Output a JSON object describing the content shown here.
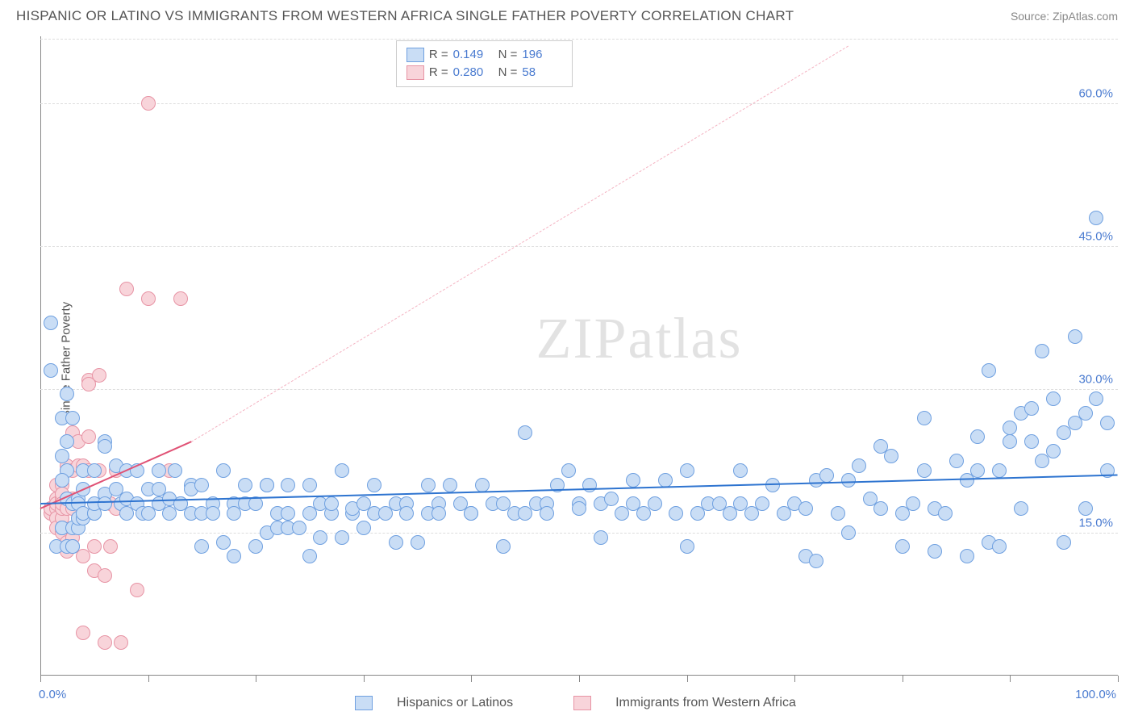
{
  "title": "HISPANIC OR LATINO VS IMMIGRANTS FROM WESTERN AFRICA SINGLE FATHER POVERTY CORRELATION CHART",
  "source": "Source: ZipAtlas.com",
  "ylabel": "Single Father Poverty",
  "watermark_a": "ZIP",
  "watermark_b": "atlas",
  "chart": {
    "type": "scatter",
    "background_color": "#ffffff",
    "grid_color": "#dddddd",
    "axis_color": "#888888",
    "label_color": "#4a7bd0",
    "xlim": [
      0,
      100
    ],
    "ylim": [
      0,
      67
    ],
    "ytick_values": [
      15,
      30,
      45,
      60
    ],
    "ytick_labels": [
      "15.0%",
      "30.0%",
      "45.0%",
      "60.0%"
    ],
    "xtick_values": [
      0,
      10,
      20,
      30,
      40,
      50,
      60,
      70,
      80,
      90,
      100
    ],
    "xaxis_labels": {
      "left": "0.0%",
      "right": "100.0%"
    },
    "marker_radius": 9,
    "marker_stroke": 1.2,
    "series_blue": {
      "name": "Hispanics or Latinos",
      "fill": "#c9ddf5",
      "stroke": "#6fa0e0",
      "trend_color": "#2e74d0",
      "trend_dash_color": "#9fc1ea",
      "R": "0.149",
      "N": "196",
      "trend": {
        "x1": 0,
        "y1": 18.0,
        "x2": 100,
        "y2": 21.0,
        "dash_from_x": 100
      },
      "points": [
        [
          1,
          37
        ],
        [
          1,
          32
        ],
        [
          2,
          27
        ],
        [
          2.5,
          29.5
        ],
        [
          2,
          23
        ],
        [
          3,
          27
        ],
        [
          2.5,
          21.5
        ],
        [
          2.5,
          24.5
        ],
        [
          2,
          20.5
        ],
        [
          2.5,
          18.5
        ],
        [
          3,
          18
        ],
        [
          3.5,
          18.5
        ],
        [
          2,
          15.5
        ],
        [
          2,
          15.5
        ],
        [
          3,
          15.5
        ],
        [
          3.5,
          15.5
        ],
        [
          1.5,
          13.5
        ],
        [
          2.5,
          13.5
        ],
        [
          3,
          13.5
        ],
        [
          3,
          13.5
        ],
        [
          3.5,
          16.5
        ],
        [
          3.5,
          18
        ],
        [
          4,
          16.5
        ],
        [
          4,
          17
        ],
        [
          4,
          19.5
        ],
        [
          4,
          21.5
        ],
        [
          5,
          17
        ],
        [
          5,
          17
        ],
        [
          5,
          18
        ],
        [
          5,
          21.5
        ],
        [
          6,
          24.5
        ],
        [
          6,
          19
        ],
        [
          6,
          18
        ],
        [
          6,
          24
        ],
        [
          7,
          19.5
        ],
        [
          7,
          22
        ],
        [
          7.5,
          18
        ],
        [
          8,
          21.5
        ],
        [
          8,
          18.5
        ],
        [
          8,
          17
        ],
        [
          9,
          18
        ],
        [
          9,
          21.5
        ],
        [
          9.5,
          17
        ],
        [
          10,
          19.5
        ],
        [
          10,
          17
        ],
        [
          11,
          18
        ],
        [
          11,
          19.5
        ],
        [
          11,
          21.5
        ],
        [
          12,
          17
        ],
        [
          12,
          18.5
        ],
        [
          12.5,
          21.5
        ],
        [
          13,
          18
        ],
        [
          13,
          18
        ],
        [
          14,
          20
        ],
        [
          14,
          17
        ],
        [
          14,
          19.5
        ],
        [
          15,
          17
        ],
        [
          15,
          13.5
        ],
        [
          15,
          20
        ],
        [
          16,
          18
        ],
        [
          16,
          17
        ],
        [
          17,
          14
        ],
        [
          17,
          21.5
        ],
        [
          18,
          18
        ],
        [
          18,
          17
        ],
        [
          18,
          12.5
        ],
        [
          19,
          20
        ],
        [
          19,
          18
        ],
        [
          20,
          18
        ],
        [
          20,
          13.5
        ],
        [
          21,
          20
        ],
        [
          21,
          15
        ],
        [
          21,
          20
        ],
        [
          22,
          15.5
        ],
        [
          22,
          17
        ],
        [
          23,
          20
        ],
        [
          23,
          15.5
        ],
        [
          23,
          17
        ],
        [
          24,
          15.5
        ],
        [
          25,
          17
        ],
        [
          25,
          20
        ],
        [
          25,
          12.5
        ],
        [
          26,
          18
        ],
        [
          26,
          14.5
        ],
        [
          27,
          17
        ],
        [
          27,
          18
        ],
        [
          28,
          14.5
        ],
        [
          28,
          21.5
        ],
        [
          29,
          17
        ],
        [
          29,
          17.5
        ],
        [
          30,
          15.5
        ],
        [
          30,
          18
        ],
        [
          31,
          17
        ],
        [
          31,
          20
        ],
        [
          32,
          17
        ],
        [
          33,
          18
        ],
        [
          33,
          14
        ],
        [
          34,
          18
        ],
        [
          34,
          17
        ],
        [
          35,
          14
        ],
        [
          36,
          17
        ],
        [
          36,
          20
        ],
        [
          37,
          18
        ],
        [
          37,
          17
        ],
        [
          38,
          20
        ],
        [
          39,
          18
        ],
        [
          40,
          17
        ],
        [
          40,
          17
        ],
        [
          41,
          20
        ],
        [
          42,
          18
        ],
        [
          43,
          13.5
        ],
        [
          43,
          18
        ],
        [
          44,
          17
        ],
        [
          45,
          25.5
        ],
        [
          45,
          17
        ],
        [
          46,
          18
        ],
        [
          47,
          18
        ],
        [
          47,
          17
        ],
        [
          48,
          20
        ],
        [
          49,
          21.5
        ],
        [
          50,
          18
        ],
        [
          50,
          17.5
        ],
        [
          51,
          20
        ],
        [
          52,
          14.5
        ],
        [
          52,
          18
        ],
        [
          53,
          18.5
        ],
        [
          54,
          17
        ],
        [
          55,
          18
        ],
        [
          55,
          20.5
        ],
        [
          56,
          17
        ],
        [
          57,
          18
        ],
        [
          58,
          20.5
        ],
        [
          59,
          17
        ],
        [
          60,
          21.5
        ],
        [
          60,
          13.5
        ],
        [
          61,
          17
        ],
        [
          62,
          18
        ],
        [
          63,
          18
        ],
        [
          64,
          17
        ],
        [
          65,
          21.5
        ],
        [
          65,
          18
        ],
        [
          66,
          17
        ],
        [
          67,
          18
        ],
        [
          68,
          20
        ],
        [
          69,
          17
        ],
        [
          70,
          18
        ],
        [
          71,
          17.5
        ],
        [
          71,
          12.5
        ],
        [
          72,
          12
        ],
        [
          72,
          20.5
        ],
        [
          73,
          21
        ],
        [
          74,
          17
        ],
        [
          75,
          15
        ],
        [
          75,
          20.5
        ],
        [
          76,
          22
        ],
        [
          77,
          18.5
        ],
        [
          78,
          24
        ],
        [
          78,
          17.5
        ],
        [
          79,
          23
        ],
        [
          80,
          17
        ],
        [
          80,
          13.5
        ],
        [
          81,
          18
        ],
        [
          82,
          21.5
        ],
        [
          82,
          27
        ],
        [
          83,
          13
        ],
        [
          83,
          17.5
        ],
        [
          84,
          17
        ],
        [
          85,
          22.5
        ],
        [
          86,
          20.5
        ],
        [
          86,
          12.5
        ],
        [
          87,
          25
        ],
        [
          87,
          21.5
        ],
        [
          88,
          14
        ],
        [
          88,
          32
        ],
        [
          89,
          13.5
        ],
        [
          89,
          21.5
        ],
        [
          90,
          26
        ],
        [
          90,
          24.5
        ],
        [
          91,
          17.5
        ],
        [
          91,
          27.5
        ],
        [
          92,
          28
        ],
        [
          92,
          24.5
        ],
        [
          93,
          34
        ],
        [
          93,
          22.5
        ],
        [
          94,
          29
        ],
        [
          94,
          23.5
        ],
        [
          95,
          14
        ],
        [
          95,
          25.5
        ],
        [
          96,
          26.5
        ],
        [
          96,
          35.5
        ],
        [
          97,
          17.5
        ],
        [
          97,
          27.5
        ],
        [
          98,
          48
        ],
        [
          98,
          29
        ],
        [
          99,
          26.5
        ],
        [
          99,
          21.5
        ]
      ]
    },
    "series_pink": {
      "name": "Immigrants from Western Africa",
      "fill": "#f8d4da",
      "stroke": "#e794a5",
      "trend_color": "#e05275",
      "trend_dash_color": "#f4b3c2",
      "R": "0.280",
      "N": "58",
      "trend": {
        "x1": 0,
        "y1": 17.5,
        "x2": 14,
        "y2": 24.5,
        "dash_to_x": 75,
        "dash_to_y": 66
      },
      "points": [
        [
          1,
          17.5
        ],
        [
          1,
          17.5
        ],
        [
          1,
          17
        ],
        [
          1,
          17.5
        ],
        [
          1.5,
          18
        ],
        [
          1.5,
          18.5
        ],
        [
          1.5,
          17.5
        ],
        [
          1.5,
          20
        ],
        [
          1.5,
          18
        ],
        [
          1.5,
          16.5
        ],
        [
          1.5,
          15.5
        ],
        [
          2,
          16.5
        ],
        [
          2,
          17.5
        ],
        [
          2,
          18.5
        ],
        [
          2,
          18.5
        ],
        [
          2,
          20
        ],
        [
          2,
          19
        ],
        [
          2,
          18
        ],
        [
          2,
          15
        ],
        [
          2.5,
          14
        ],
        [
          2.5,
          13
        ],
        [
          2.5,
          17.5
        ],
        [
          2.5,
          18.5
        ],
        [
          2.5,
          21.5
        ],
        [
          2.5,
          22
        ],
        [
          3,
          25.5
        ],
        [
          3,
          21.5
        ],
        [
          3,
          18.5
        ],
        [
          3,
          17.5
        ],
        [
          3,
          14.5
        ],
        [
          3.5,
          24.5
        ],
        [
          3.5,
          22
        ],
        [
          3.5,
          18
        ],
        [
          3.5,
          16.5
        ],
        [
          4,
          12.5
        ],
        [
          4,
          4.5
        ],
        [
          4,
          22
        ],
        [
          4.5,
          21.5
        ],
        [
          4.5,
          25
        ],
        [
          4.5,
          31
        ],
        [
          4.5,
          30.5
        ],
        [
          5,
          11
        ],
        [
          5,
          13.5
        ],
        [
          5.5,
          21.5
        ],
        [
          5.5,
          31.5
        ],
        [
          6,
          10.5
        ],
        [
          6,
          3.5
        ],
        [
          6.5,
          18
        ],
        [
          6.5,
          13.5
        ],
        [
          7,
          21.5
        ],
        [
          7,
          17.5
        ],
        [
          7.5,
          3.5
        ],
        [
          8,
          40.5
        ],
        [
          9,
          9
        ],
        [
          10,
          39.5
        ],
        [
          10,
          60
        ],
        [
          12,
          21.5
        ],
        [
          13,
          39.5
        ]
      ]
    }
  },
  "legend_top": {
    "rlabel": "R  =",
    "nlabel": "N  ="
  },
  "legend_bottom": {
    "a": "Hispanics or Latinos",
    "b": "Immigrants from Western Africa"
  }
}
